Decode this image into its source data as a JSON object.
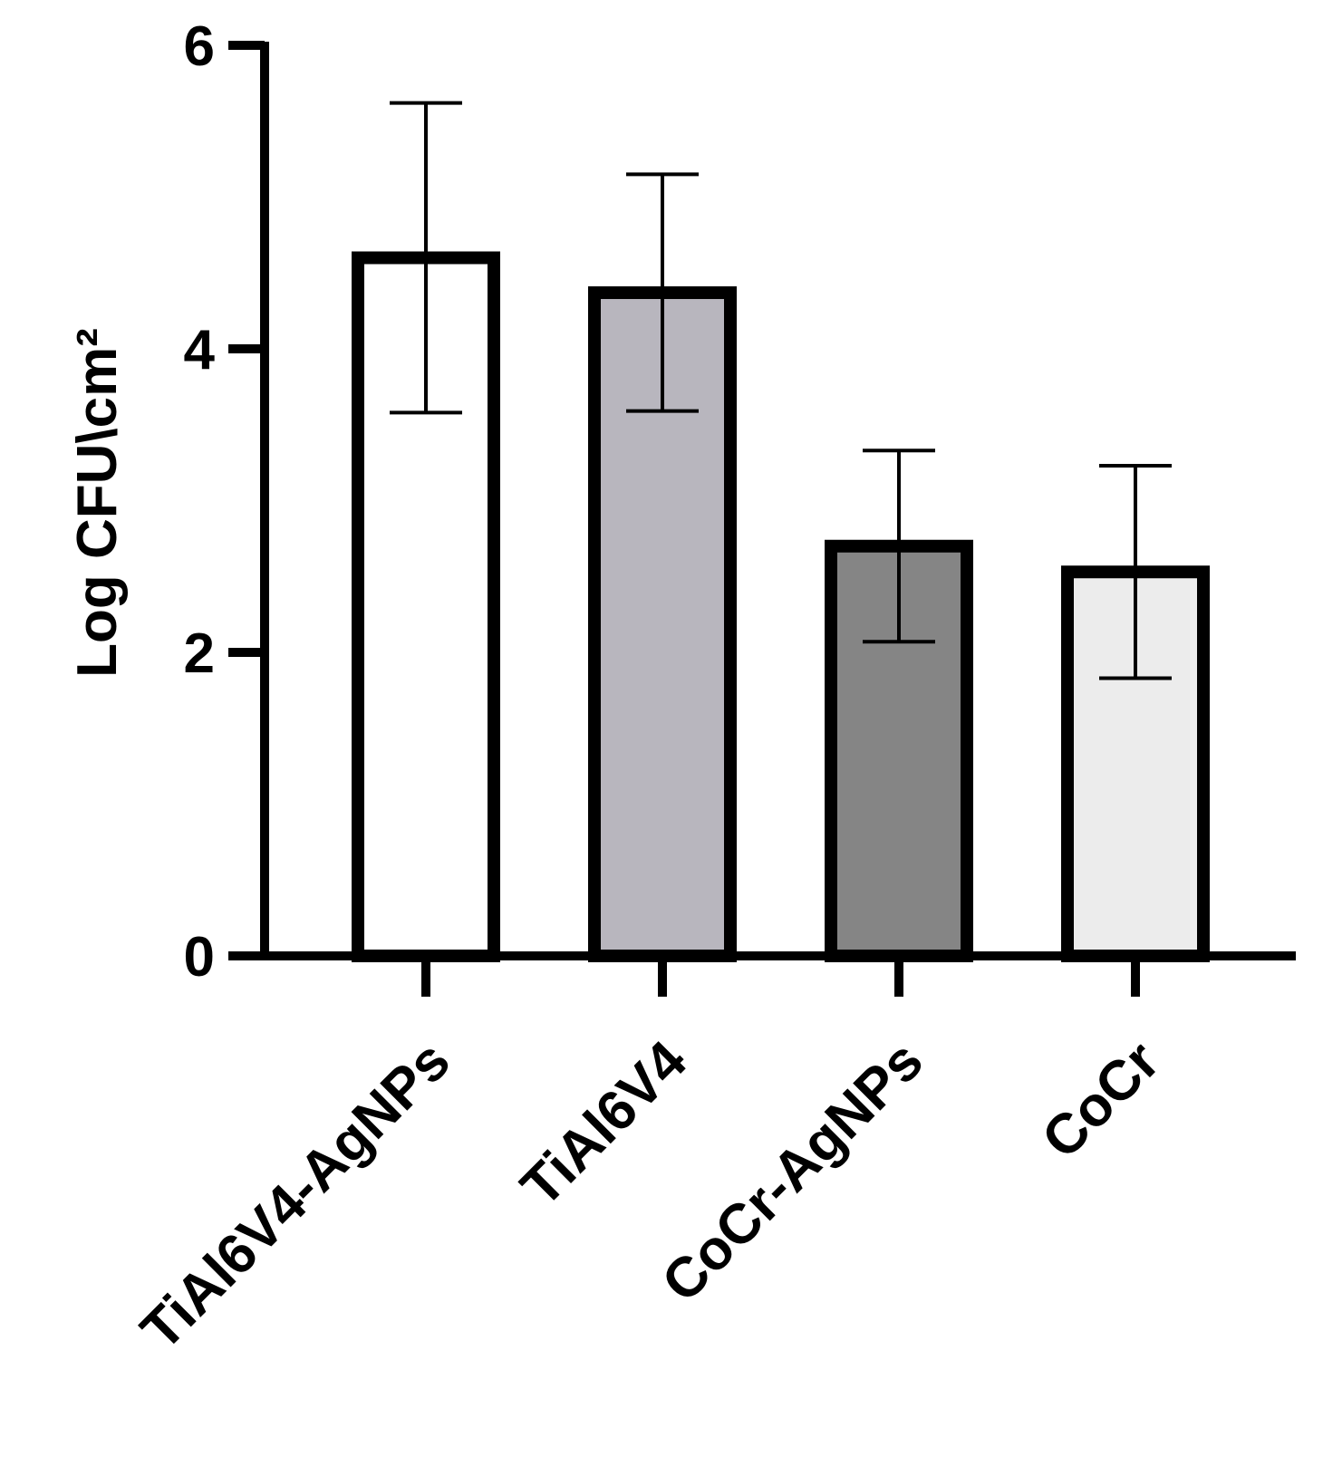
{
  "chart_data": {
    "type": "bar",
    "y_label": "Log CFU\\cm²",
    "categories": [
      "TiAl6V4-AgNPs",
      "TiAl6V4",
      "CoCr-AgNPs",
      "CoCr"
    ],
    "values": [
      4.6,
      4.37,
      2.7,
      2.53
    ],
    "errors": [
      1.02,
      0.78,
      0.63,
      0.7
    ],
    "colors": [
      "#ffffff",
      "#b8b6be",
      "#858585",
      "#ececec"
    ],
    "ylim": [
      0,
      6
    ],
    "yticks": [
      0,
      2,
      4,
      6
    ]
  }
}
